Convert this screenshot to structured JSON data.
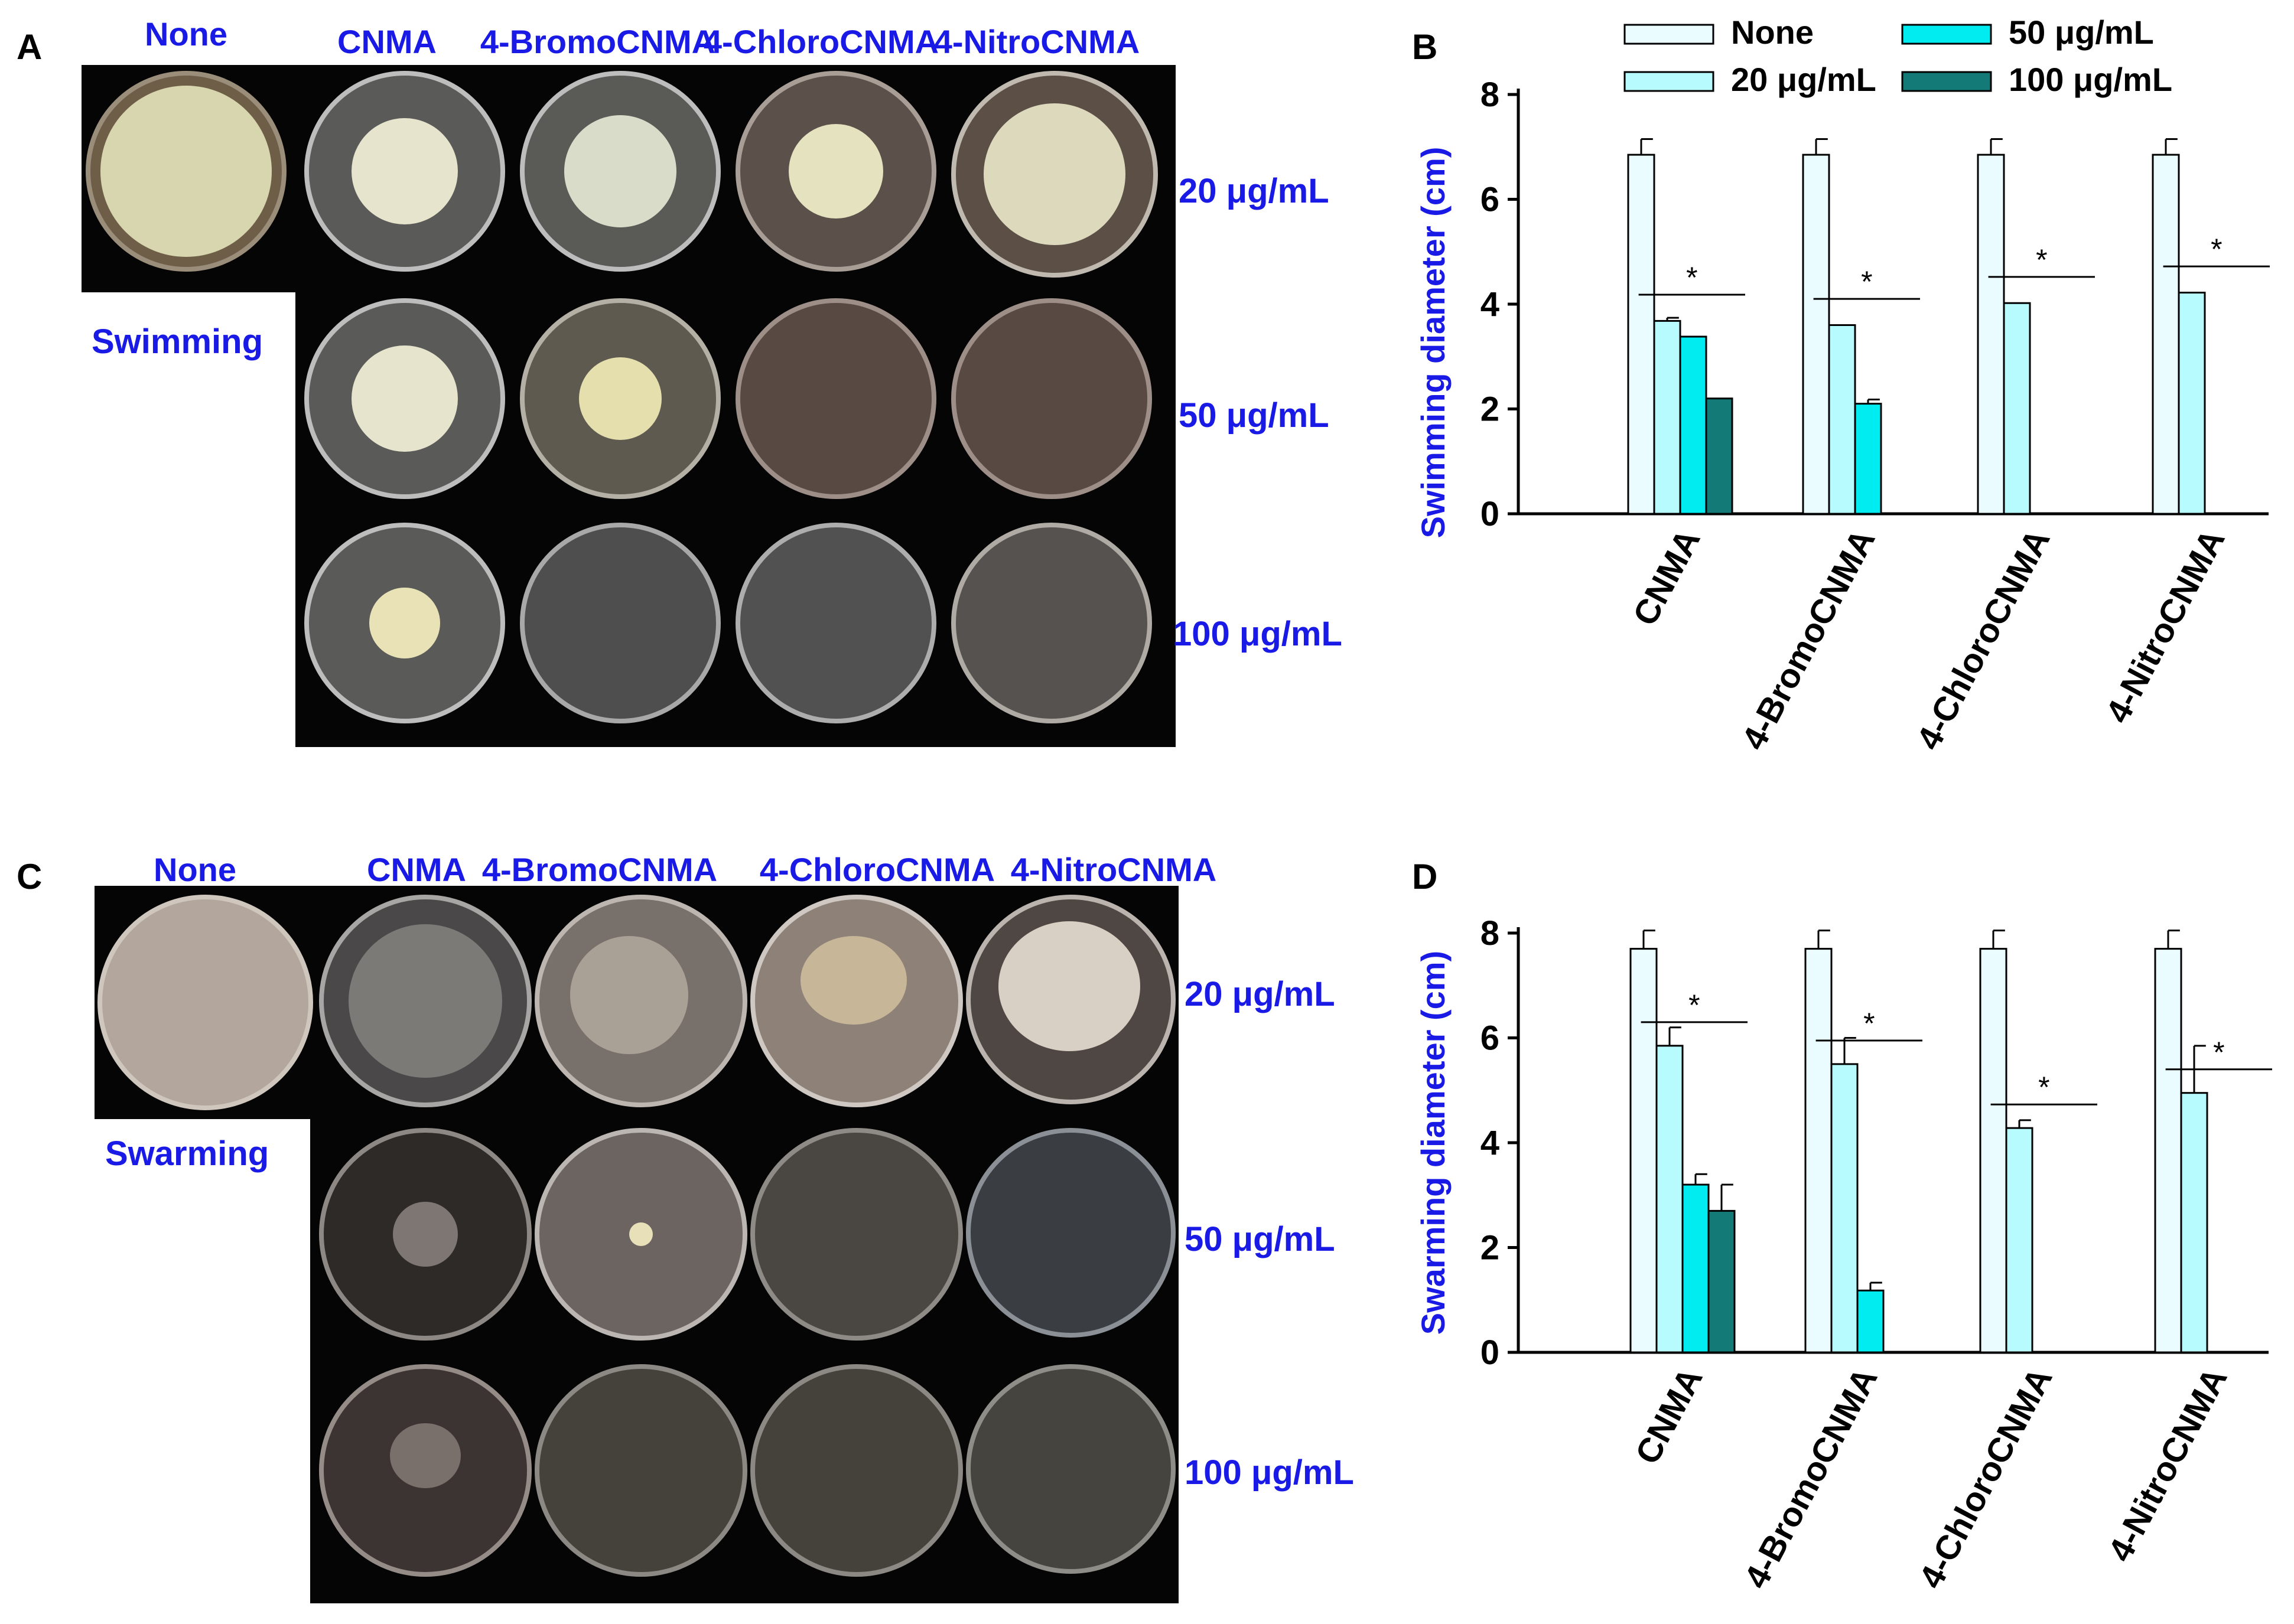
{
  "panels": {
    "A": {
      "letter": "A",
      "motility": "Swimming",
      "columns": [
        "None",
        "CNMA",
        "4-BromoCNMA",
        "4-ChloroCNMA",
        "4-NitroCNMA"
      ],
      "concentrations": [
        "20 μg/mL",
        "50 μg/mL",
        "100 μg/mL"
      ]
    },
    "C": {
      "letter": "C",
      "motility": "Swarming",
      "columns": [
        "None",
        "CNMA",
        "4-BromoCNMA",
        "4-ChloroCNMA",
        "4-NitroCNMA"
      ],
      "concentrations": [
        "20 μg/mL",
        "50 μg/mL",
        "100 μg/mL"
      ]
    },
    "B": {
      "letter": "B"
    },
    "D": {
      "letter": "D"
    }
  },
  "legend": [
    "None",
    "20 μg/mL",
    "50 μg/mL",
    "100 μg/mL"
  ],
  "colors": {
    "none": "#eafcff",
    "c20": "#b8fbff",
    "c50": "#00ecf0",
    "c100": "#137a78",
    "label_blue": "#1a1ae6"
  },
  "chart_data": [
    {
      "type": "bar",
      "panel": "B",
      "ylabel": "Swimming diameter (cm)",
      "xlabel": "",
      "ylim": [
        0,
        8
      ],
      "yticks": [
        "0",
        "2",
        "4",
        "6",
        "8"
      ],
      "categories": [
        "CNMA",
        "4-BromoCNMA",
        "4-ChloroCNMA",
        "4-NitroCNMA"
      ],
      "legend_position": "top",
      "significance": "*",
      "series": [
        {
          "name": "None",
          "values": [
            6.85,
            6.85,
            6.85,
            6.85
          ],
          "errors": [
            0.3,
            0.3,
            0.3,
            0.3
          ]
        },
        {
          "name": "20 μg/mL",
          "values": [
            3.68,
            3.6,
            4.02,
            4.22
          ],
          "errors": [
            0.06,
            0,
            0,
            0
          ]
        },
        {
          "name": "50 μg/mL",
          "values": [
            3.38,
            2.1,
            0,
            0
          ],
          "errors": [
            0,
            0.08,
            0,
            0
          ]
        },
        {
          "name": "100 μg/mL",
          "values": [
            2.2,
            0,
            0,
            0
          ],
          "errors": [
            0,
            0,
            0,
            0
          ]
        }
      ]
    },
    {
      "type": "bar",
      "panel": "D",
      "ylabel": "Swarming diameter (cm)",
      "xlabel": "",
      "ylim": [
        0,
        8
      ],
      "yticks": [
        "0",
        "2",
        "4",
        "6",
        "8"
      ],
      "categories": [
        "CNMA",
        "4-BromoCNMA",
        "4-ChloroCNMA",
        "4-NitroCNMA"
      ],
      "significance": "*",
      "series": [
        {
          "name": "None",
          "values": [
            7.7,
            7.7,
            7.7,
            7.7
          ],
          "errors": [
            0.35,
            0.35,
            0.35,
            0.35
          ]
        },
        {
          "name": "20 μg/mL",
          "values": [
            5.85,
            5.5,
            4.28,
            4.95
          ],
          "errors": [
            0.35,
            0.5,
            0.15,
            0.9
          ]
        },
        {
          "name": "50 μg/mL",
          "values": [
            3.2,
            1.18,
            0,
            0
          ],
          "errors": [
            0.2,
            0.15,
            0,
            0
          ]
        },
        {
          "name": "100 μg/mL",
          "values": [
            2.7,
            0,
            0,
            0
          ],
          "errors": [
            0.5,
            0,
            0,
            0
          ]
        }
      ]
    }
  ]
}
